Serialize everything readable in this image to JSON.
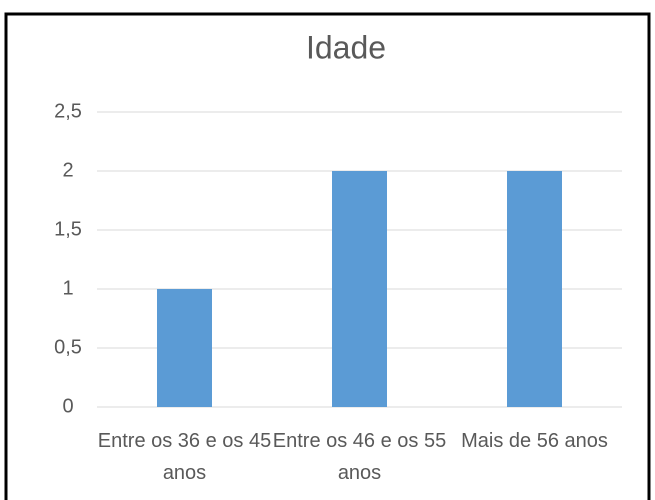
{
  "chart_data": {
    "type": "bar",
    "title": "Idade",
    "categories": [
      "Entre os 36 e os 45 anos",
      "Entre os 46 e os 55 anos",
      "Mais de 56 anos"
    ],
    "values": [
      1,
      2,
      2
    ],
    "color": "#5b9bd5",
    "ylim": [
      0,
      2.5
    ],
    "yticks": [
      0,
      {
        "value": 0.5,
        "label": "0,5"
      },
      1,
      {
        "value": 1.5,
        "label": "1,5"
      },
      2,
      {
        "value": 2.5,
        "label": "2,5"
      }
    ],
    "grid": true
  }
}
